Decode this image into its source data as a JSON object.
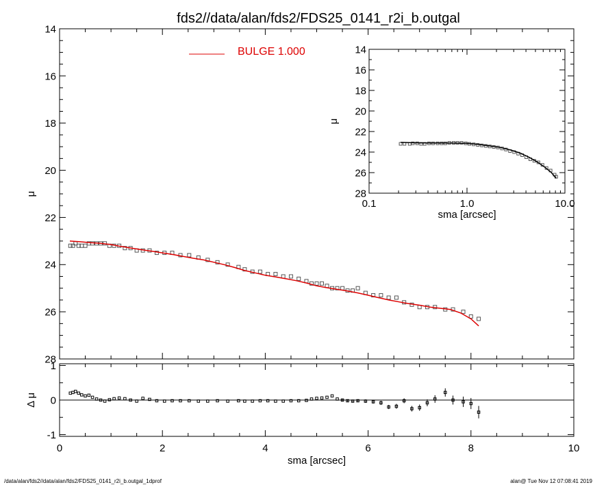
{
  "title": "fds2//data/alan/fds2/FDS25_0141_r2i_b.outgal",
  "legend": {
    "label": "BULGE  1.000",
    "color": "#dd0000"
  },
  "footer": {
    "left": "/data/alan/fds2//data/alan/fds2/FDS25_0141_r2i_b.outgal_1dprof",
    "right": "alan@  Tue Nov 12 07:08:41 2019"
  },
  "chart_data": [
    {
      "id": "main",
      "type": "scatter",
      "xlabel": "sma [arcsec]",
      "ylabel": "μ",
      "xlim": [
        0,
        10
      ],
      "ylim": [
        28,
        14
      ],
      "y_inverted": true,
      "xticks": [
        "0",
        "2",
        "4",
        "6",
        "8",
        "10"
      ],
      "yticks": [
        "14",
        "16",
        "18",
        "20",
        "22",
        "24",
        "26",
        "28"
      ],
      "series": [
        {
          "role": "data",
          "marker": "open-square",
          "color": "#555555",
          "x": [
            0.21,
            0.26,
            0.31,
            0.37,
            0.43,
            0.5,
            0.57,
            0.64,
            0.72,
            0.8,
            0.88,
            0.97,
            1.06,
            1.16,
            1.27,
            1.38,
            1.5,
            1.62,
            1.75,
            1.89,
            2.04,
            2.19,
            2.35,
            2.52,
            2.7,
            2.88,
            3.07,
            3.27,
            3.48,
            3.6,
            3.75,
            3.9,
            4.05,
            4.2,
            4.35,
            4.5,
            4.65,
            4.8,
            4.9,
            5.0,
            5.1,
            5.2,
            5.3,
            5.4,
            5.5,
            5.6,
            5.7,
            5.8,
            5.95,
            6.1,
            6.25,
            6.4,
            6.55,
            6.7,
            6.85,
            7.0,
            7.15,
            7.3,
            7.5,
            7.65,
            7.85,
            8.0,
            8.15
          ],
          "y": [
            23.2,
            23.2,
            23.1,
            23.2,
            23.2,
            23.2,
            23.1,
            23.1,
            23.1,
            23.1,
            23.1,
            23.2,
            23.2,
            23.2,
            23.3,
            23.3,
            23.4,
            23.4,
            23.4,
            23.5,
            23.5,
            23.5,
            23.6,
            23.6,
            23.7,
            23.8,
            23.9,
            24.0,
            24.1,
            24.2,
            24.3,
            24.3,
            24.4,
            24.4,
            24.5,
            24.5,
            24.6,
            24.7,
            24.8,
            24.8,
            24.8,
            24.9,
            25.0,
            25.0,
            25.0,
            25.1,
            25.1,
            25.0,
            25.2,
            25.3,
            25.3,
            25.4,
            25.4,
            25.6,
            25.7,
            25.8,
            25.8,
            25.8,
            25.9,
            25.9,
            26.0,
            26.2,
            26.3
          ],
          "err": [
            0.01,
            0.01,
            0.01,
            0.01,
            0.01,
            0.01,
            0.01,
            0.01,
            0.01,
            0.01,
            0.01,
            0.01,
            0.01,
            0.01,
            0.01,
            0.01,
            0.01,
            0.01,
            0.01,
            0.01,
            0.01,
            0.01,
            0.01,
            0.01,
            0.01,
            0.01,
            0.01,
            0.01,
            0.01,
            0.02,
            0.02,
            0.02,
            0.02,
            0.02,
            0.02,
            0.02,
            0.02,
            0.03,
            0.03,
            0.03,
            0.03,
            0.03,
            0.03,
            0.03,
            0.04,
            0.04,
            0.04,
            0.04,
            0.05,
            0.05,
            0.06,
            0.06,
            0.07,
            0.07,
            0.08,
            0.09,
            0.1,
            0.11,
            0.12,
            0.13,
            0.15,
            0.16,
            0.18
          ]
        },
        {
          "name": "BULGE  1.000",
          "role": "model",
          "marker": "line",
          "color": "#dd0000",
          "x": [
            0.2,
            0.4,
            0.6,
            0.8,
            1.0,
            1.2,
            1.4,
            1.6,
            1.8,
            2.0,
            2.2,
            2.4,
            2.6,
            2.8,
            3.0,
            3.2,
            3.4,
            3.6,
            3.8,
            4.0,
            4.2,
            4.4,
            4.6,
            4.8,
            5.0,
            5.2,
            5.4,
            5.6,
            5.8,
            6.0,
            6.2,
            6.4,
            6.6,
            6.8,
            7.0,
            7.2,
            7.4,
            7.6,
            7.8,
            8.0,
            8.15
          ],
          "y": [
            23.0,
            23.03,
            23.07,
            23.1,
            23.15,
            23.23,
            23.3,
            23.37,
            23.43,
            23.5,
            23.57,
            23.65,
            23.73,
            23.8,
            23.9,
            24.0,
            24.12,
            24.25,
            24.35,
            24.45,
            24.52,
            24.6,
            24.68,
            24.78,
            24.9,
            24.98,
            25.05,
            25.12,
            25.2,
            25.3,
            25.4,
            25.5,
            25.58,
            25.66,
            25.72,
            25.8,
            25.85,
            25.9,
            26.05,
            26.3,
            26.6
          ]
        }
      ]
    },
    {
      "id": "residual",
      "type": "scatter",
      "xlabel": "sma [arcsec]",
      "ylabel": "Δ μ",
      "xlim": [
        0,
        10
      ],
      "ylim": [
        -1.05,
        1.05
      ],
      "xticks": [
        "0",
        "2",
        "4",
        "6",
        "8",
        "10"
      ],
      "yticks": [
        "1",
        "0",
        "-1"
      ],
      "reference_line": 0,
      "series": [
        {
          "role": "residual",
          "marker": "open-square",
          "color": "#000000",
          "x": [
            0.21,
            0.26,
            0.31,
            0.37,
            0.43,
            0.5,
            0.57,
            0.64,
            0.72,
            0.8,
            0.88,
            0.97,
            1.06,
            1.16,
            1.27,
            1.38,
            1.5,
            1.62,
            1.75,
            1.89,
            2.04,
            2.19,
            2.35,
            2.52,
            2.7,
            2.88,
            3.07,
            3.27,
            3.48,
            3.6,
            3.75,
            3.9,
            4.05,
            4.2,
            4.35,
            4.5,
            4.65,
            4.8,
            4.9,
            5.0,
            5.1,
            5.2,
            5.3,
            5.4,
            5.5,
            5.6,
            5.7,
            5.8,
            5.95,
            6.1,
            6.25,
            6.4,
            6.55,
            6.7,
            6.85,
            7.0,
            7.15,
            7.3,
            7.5,
            7.65,
            7.85,
            8.0,
            8.15
          ],
          "y": [
            0.2,
            0.22,
            0.25,
            0.2,
            0.15,
            0.12,
            0.14,
            0.08,
            0.03,
            0.0,
            -0.03,
            0.01,
            0.04,
            0.06,
            0.04,
            0.0,
            -0.03,
            0.05,
            0.02,
            -0.02,
            -0.03,
            -0.02,
            -0.02,
            -0.02,
            -0.03,
            -0.03,
            -0.02,
            -0.03,
            -0.02,
            -0.03,
            -0.03,
            -0.02,
            -0.02,
            -0.03,
            -0.03,
            -0.02,
            -0.02,
            -0.01,
            0.03,
            0.05,
            0.06,
            0.08,
            0.12,
            0.03,
            0.0,
            -0.02,
            -0.03,
            -0.02,
            -0.03,
            -0.05,
            -0.08,
            -0.2,
            -0.18,
            -0.02,
            -0.25,
            -0.22,
            -0.08,
            0.03,
            0.22,
            0.0,
            -0.05,
            -0.1,
            -0.35
          ],
          "err": [
            0.01,
            0.01,
            0.01,
            0.01,
            0.01,
            0.01,
            0.01,
            0.01,
            0.01,
            0.01,
            0.01,
            0.01,
            0.01,
            0.01,
            0.01,
            0.01,
            0.01,
            0.01,
            0.01,
            0.01,
            0.01,
            0.01,
            0.01,
            0.01,
            0.01,
            0.01,
            0.01,
            0.01,
            0.01,
            0.02,
            0.02,
            0.02,
            0.02,
            0.02,
            0.02,
            0.02,
            0.02,
            0.03,
            0.03,
            0.03,
            0.03,
            0.03,
            0.03,
            0.03,
            0.04,
            0.04,
            0.04,
            0.04,
            0.05,
            0.05,
            0.06,
            0.06,
            0.07,
            0.07,
            0.08,
            0.09,
            0.1,
            0.11,
            0.12,
            0.13,
            0.15,
            0.16,
            0.18
          ]
        }
      ]
    },
    {
      "id": "inset",
      "type": "scatter",
      "xlabel": "sma [arcsec]",
      "ylabel": "μ",
      "xscale": "log",
      "xlim": [
        0.1,
        10.0
      ],
      "ylim": [
        28,
        14
      ],
      "y_inverted": true,
      "xticks": [
        "0.1",
        "1.0",
        "10.0"
      ],
      "yticks": [
        "14",
        "16",
        "18",
        "20",
        "22",
        "24",
        "26",
        "28"
      ],
      "series": [
        {
          "role": "data",
          "marker": "open-square",
          "color": "#555555",
          "x": [
            0.21,
            0.23,
            0.26,
            0.28,
            0.31,
            0.34,
            0.37,
            0.41,
            0.45,
            0.5,
            0.55,
            0.6,
            0.66,
            0.73,
            0.8,
            0.88,
            0.97,
            1.06,
            1.17,
            1.29,
            1.42,
            1.56,
            1.71,
            1.88,
            2.07,
            2.28,
            2.5,
            2.75,
            3.03,
            3.33,
            3.66,
            4.03,
            4.43,
            4.87,
            5.36,
            5.9,
            6.49,
            7.14,
            7.85,
            8.15
          ],
          "y": [
            23.2,
            23.2,
            23.2,
            23.15,
            23.15,
            23.2,
            23.2,
            23.15,
            23.15,
            23.15,
            23.15,
            23.15,
            23.1,
            23.1,
            23.1,
            23.1,
            23.15,
            23.2,
            23.25,
            23.3,
            23.35,
            23.4,
            23.45,
            23.5,
            23.55,
            23.65,
            23.75,
            23.9,
            24.0,
            24.15,
            24.3,
            24.5,
            24.7,
            24.85,
            25.0,
            25.25,
            25.55,
            25.8,
            26.2,
            26.4
          ]
        },
        {
          "name": "BULGE  1.000",
          "role": "model",
          "marker": "line",
          "color": "#000000",
          "x": [
            0.21,
            0.3,
            0.45,
            0.7,
            1.0,
            1.3,
            1.7,
            2.2,
            2.8,
            3.5,
            4.3,
            5.2,
            6.2,
            7.2,
            8.15
          ],
          "y": [
            23.05,
            23.1,
            23.12,
            23.12,
            23.15,
            23.25,
            23.4,
            23.55,
            23.8,
            24.1,
            24.5,
            24.95,
            25.45,
            25.95,
            26.55
          ]
        }
      ]
    }
  ]
}
